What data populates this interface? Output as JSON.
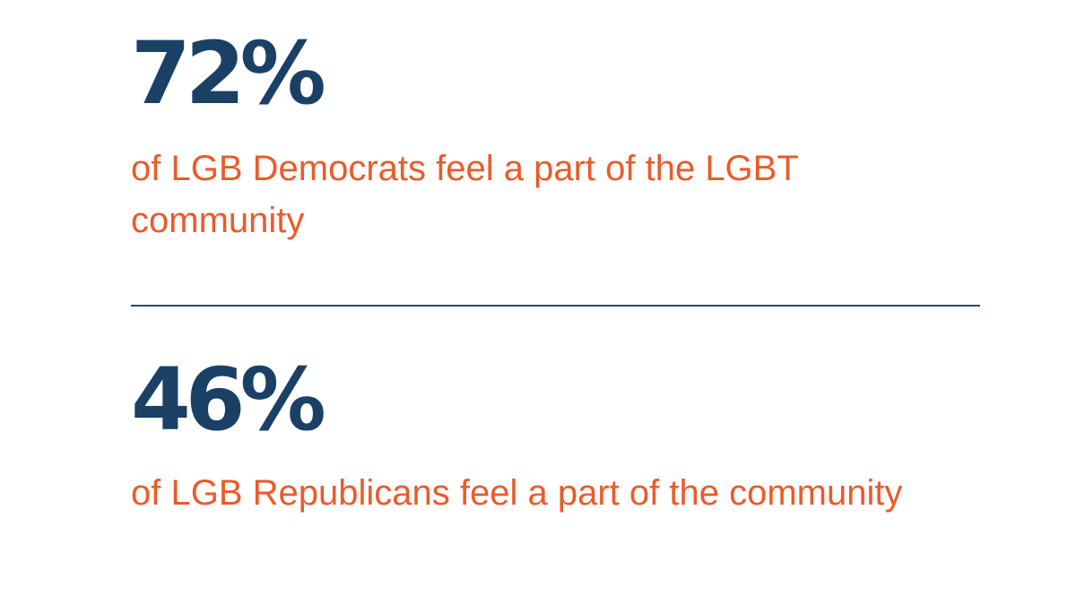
{
  "stats": [
    {
      "value": "72%",
      "caption": "of LGB Democrats feel a part of the LGBT community"
    },
    {
      "value": "46%",
      "caption": "of LGB Republicans feel a part of the community"
    }
  ],
  "colors": {
    "value": "#1b4066",
    "caption": "#ea5b2a",
    "divider": "#2c4a5e",
    "background": "#ffffff"
  }
}
